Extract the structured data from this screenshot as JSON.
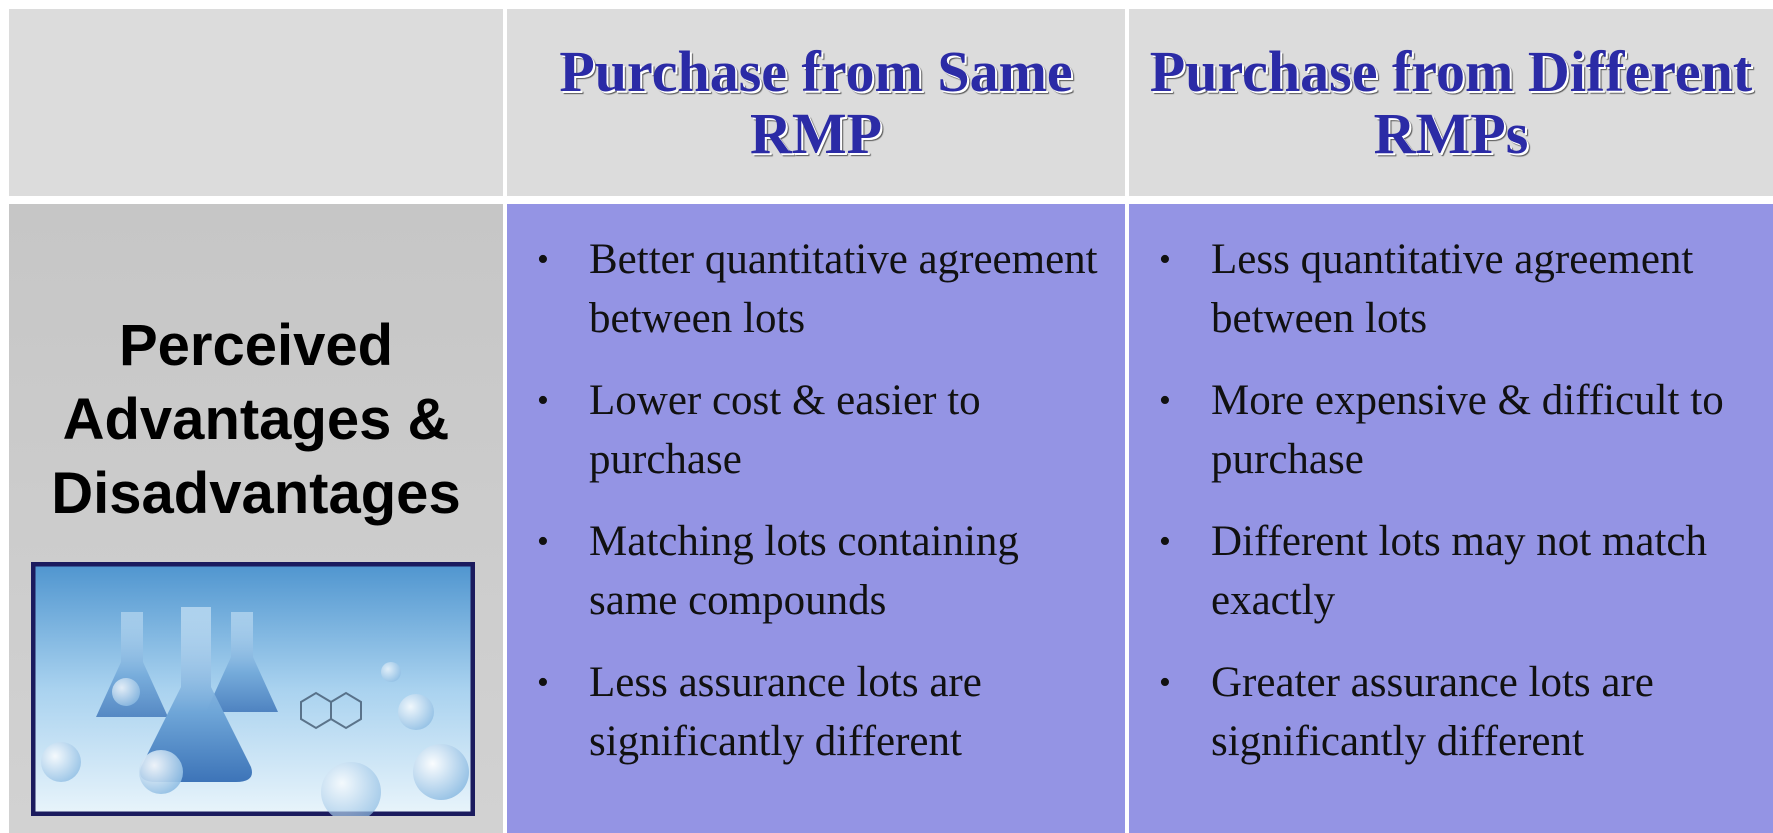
{
  "header": {
    "columns": [
      "Purchase from Same RMP",
      "Purchase from Different RMPs"
    ]
  },
  "row_label": "Perceived Advantages & Disadvantages",
  "columns": [
    {
      "items": [
        "Better quantitative agreement between lots",
        "Lower cost & easier to purchase",
        "Matching lots containing same compounds",
        "Less assurance lots are significantly different"
      ]
    },
    {
      "items": [
        "Less quantitative agreement between lots",
        "More expensive & difficult to purchase",
        "Different lots may not match exactly",
        "Greater assurance lots are significantly different"
      ]
    }
  ]
}
